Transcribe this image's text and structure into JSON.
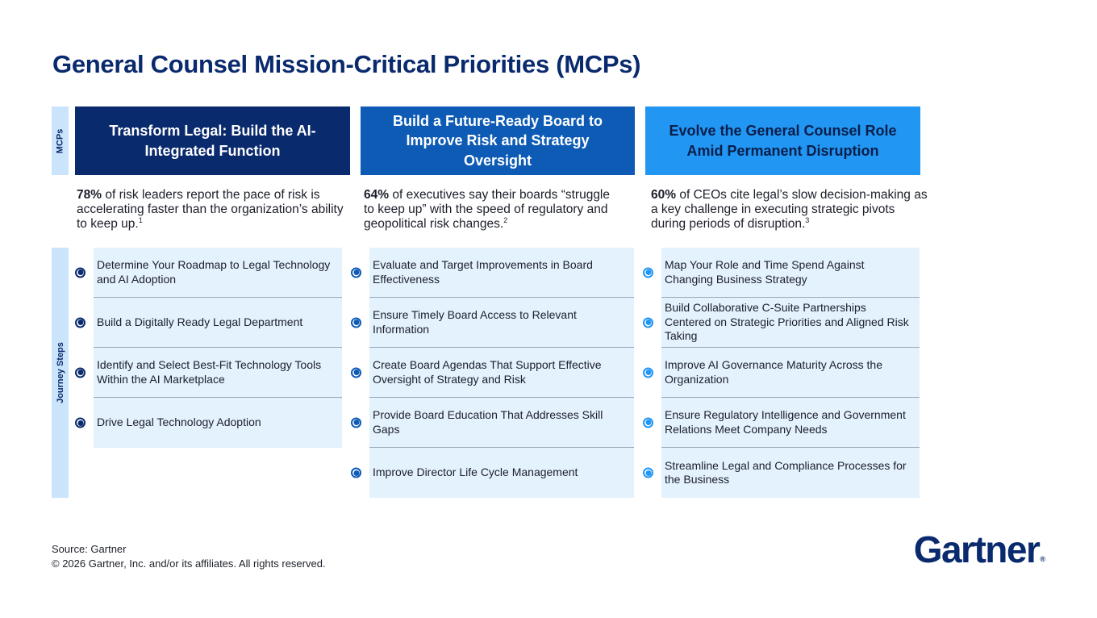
{
  "title": "General Counsel Mission-Critical Priorities (MCPs)",
  "side_labels": {
    "mcps": "MCPs",
    "journey": "Journey Steps"
  },
  "columns": [
    {
      "header": "Transform Legal: Build the AI-Integrated Function",
      "stat_pct": "78%",
      "stat_text": " of risk leaders report the pace of risk is accelerating faster than the organization’s ability to keep up.",
      "stat_ref": "1",
      "steps": [
        "Determine Your Roadmap to Legal Technology and AI Adoption",
        "Build a Digitally Ready Legal Department",
        "Identify and Select Best-Fit Technology Tools Within the AI Marketplace",
        "Drive Legal Technology Adoption"
      ]
    },
    {
      "header": "Build a Future-Ready Board to Improve Risk and Strategy Oversight",
      "stat_pct": "64%",
      "stat_text": " of executives say their boards “struggle to keep up” with the speed of regulatory and geopolitical risk changes.",
      "stat_ref": "2",
      "steps": [
        "Evaluate and Target Improvements in Board Effectiveness",
        "Ensure Timely Board Access to Relevant Information",
        "Create Board Agendas That Support Effective Oversight of Strategy and Risk",
        "Provide Board Education That Addresses Skill Gaps",
        "Improve Director Life Cycle Management"
      ]
    },
    {
      "header": "Evolve the General Counsel Role Amid Permanent Disruption",
      "stat_pct": "60%",
      "stat_text": " of CEOs cite legal’s slow decision-making as a key challenge in executing strategic pivots during periods of disruption.",
      "stat_ref": "3",
      "steps": [
        "Map Your Role and Time Spend Against Changing Business Strategy",
        "Build Collaborative C-Suite Partnerships Centered on Strategic Priorities and Aligned Risk Taking",
        "Improve AI Governance Maturity Across the Organization",
        "Ensure Regulatory Intelligence and Government Relations Meet Company Needs",
        "Streamline Legal and Compliance Processes for the Business"
      ]
    }
  ],
  "footer": {
    "source": "Source: Gartner",
    "copyright": "© 2026 Gartner, Inc. and/or its affiliates. All rights reserved."
  },
  "logo": {
    "text": "Gartner",
    "mark": "®"
  },
  "colors": {
    "navy": "#0a2a6e",
    "mid_blue": "#0e5bb5",
    "bright_blue": "#2196f3",
    "light_blue": "#e3f2fd",
    "side_label_bg": "#c9e4fb"
  }
}
